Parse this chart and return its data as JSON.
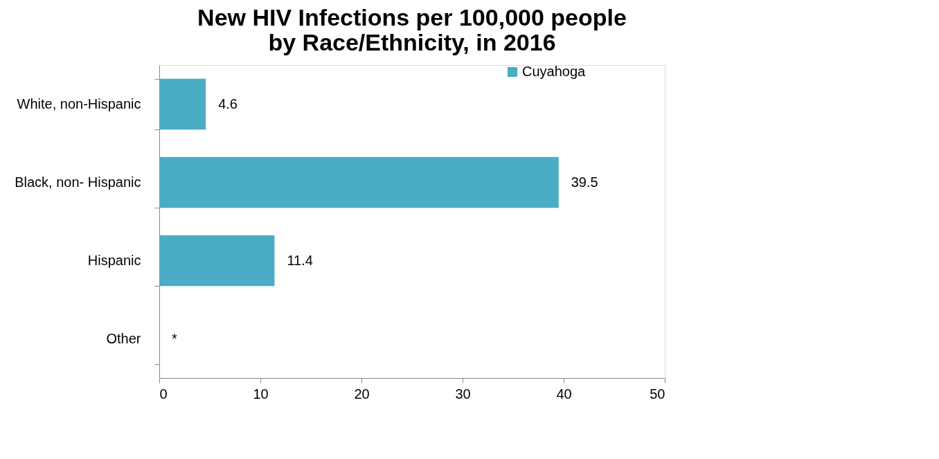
{
  "chart_data": {
    "type": "bar",
    "orientation": "horizontal",
    "title": "New HIV Infections per 100,000 people\nby Race/Ethnicity, in 2016",
    "categories": [
      "White, non-Hispanic",
      "Black, non- Hispanic",
      "Hispanic",
      "Other"
    ],
    "series": [
      {
        "name": "Cuyahoga",
        "color": "#4bacc6",
        "values": [
          4.6,
          39.5,
          11.4,
          null
        ],
        "value_labels": [
          "4.6",
          "39.5",
          "11.4",
          "*"
        ]
      }
    ],
    "xlim": [
      0,
      50
    ],
    "xticks": [
      0,
      10,
      20,
      30,
      40,
      50
    ],
    "grid": false,
    "legend": "right"
  }
}
